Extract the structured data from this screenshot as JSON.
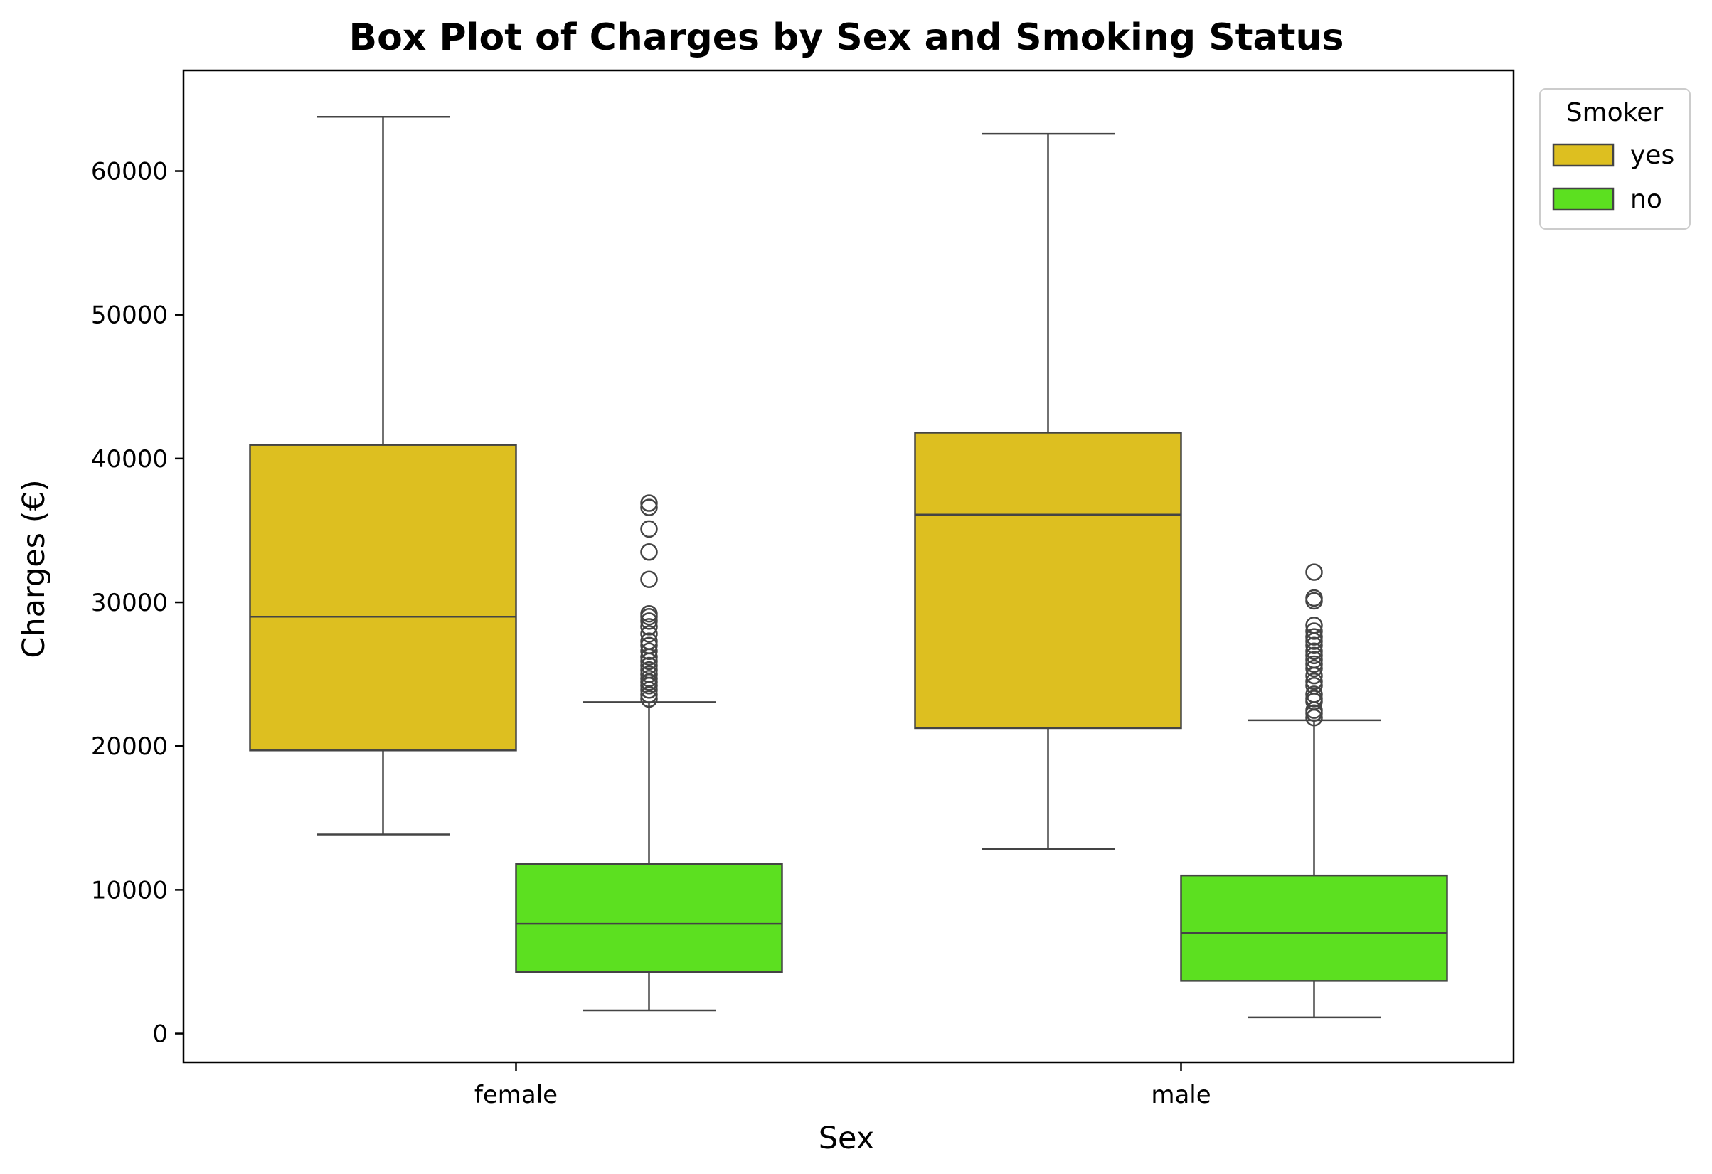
{
  "chart_data": {
    "type": "box",
    "title": "Box Plot of Charges by Sex and Smoking Status",
    "xlabel": "Sex",
    "ylabel": "Charges (€)",
    "categories": [
      "female",
      "male"
    ],
    "ylim": [
      -2000,
      67000
    ],
    "yticks": [
      0,
      10000,
      20000,
      30000,
      40000,
      50000,
      60000
    ],
    "ytick_labels": [
      "0",
      "10000",
      "20000",
      "30000",
      "40000",
      "50000",
      "60000"
    ],
    "legend": {
      "title": "Smoker",
      "placement": "top-right outside"
    },
    "grid": false,
    "series": [
      {
        "name": "yes",
        "color": "#ddbf20",
        "boxes": [
          {
            "whisker_low": 13850,
            "q1": 19700,
            "median": 29000,
            "q3": 40950,
            "whisker_high": 63770,
            "outliers": []
          },
          {
            "whisker_low": 12830,
            "q1": 21250,
            "median": 36100,
            "q3": 41800,
            "whisker_high": 62590,
            "outliers": []
          }
        ]
      },
      {
        "name": "no",
        "color": "#5ce020",
        "boxes": [
          {
            "whisker_low": 1610,
            "q1": 4270,
            "median": 7640,
            "q3": 11800,
            "whisker_high": 23060,
            "outliers": [
              23280,
              23570,
              23900,
              24200,
              24450,
              24700,
              25000,
              25300,
              25600,
              25900,
              26200,
              26600,
              27000,
              27300,
              27800,
              28300,
              28700,
              29000,
              29200,
              31600,
              33500,
              35100,
              36600,
              36900
            ]
          },
          {
            "whisker_low": 1120,
            "q1": 3670,
            "median": 6990,
            "q3": 11000,
            "whisker_high": 21800,
            "outliers": [
              21980,
              22300,
              22500,
              23100,
              23300,
              23600,
              24200,
              24500,
              24900,
              25400,
              25700,
              26000,
              26300,
              26600,
              27000,
              27300,
              27600,
              28000,
              28400,
              30100,
              30300,
              32100
            ]
          }
        ]
      }
    ]
  }
}
